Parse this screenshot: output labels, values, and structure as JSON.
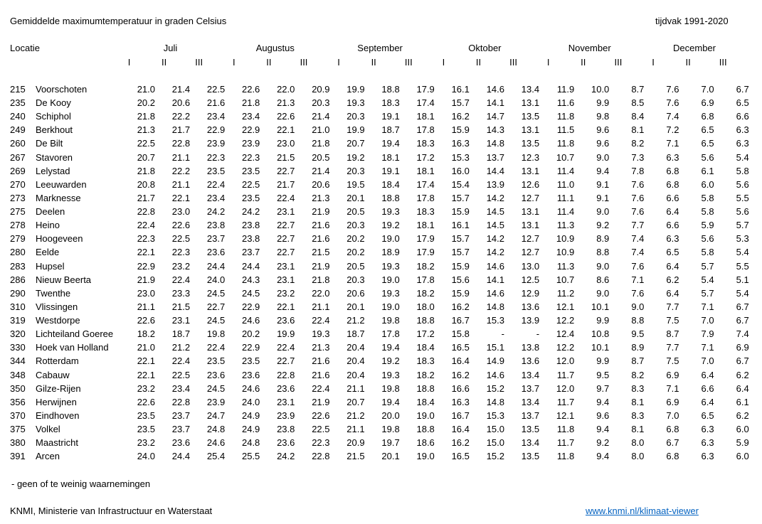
{
  "header": {
    "title": "Gemiddelde maximumtemperatuur in graden Celsius",
    "period": "tijdvak 1991-2020"
  },
  "table": {
    "location_header": "Locatie",
    "months": [
      "Juli",
      "Augustus",
      "September",
      "Oktober",
      "November",
      "December"
    ],
    "decades": [
      "I",
      "II",
      "III"
    ],
    "rows": [
      [
        "215",
        "Voorschoten",
        "21.0",
        "21.4",
        "22.5",
        "22.6",
        "22.0",
        "20.9",
        "19.9",
        "18.8",
        "17.9",
        "16.1",
        "14.6",
        "13.4",
        "11.9",
        "10.0",
        "8.7",
        "7.6",
        "7.0",
        "6.7"
      ],
      [
        "235",
        "De Kooy",
        "20.2",
        "20.6",
        "21.6",
        "21.8",
        "21.3",
        "20.3",
        "19.3",
        "18.3",
        "17.4",
        "15.7",
        "14.1",
        "13.1",
        "11.6",
        "9.9",
        "8.5",
        "7.6",
        "6.9",
        "6.5"
      ],
      [
        "240",
        "Schiphol",
        "21.8",
        "22.2",
        "23.4",
        "23.4",
        "22.6",
        "21.4",
        "20.3",
        "19.1",
        "18.1",
        "16.2",
        "14.7",
        "13.5",
        "11.8",
        "9.8",
        "8.4",
        "7.4",
        "6.8",
        "6.6"
      ],
      [
        "249",
        "Berkhout",
        "21.3",
        "21.7",
        "22.9",
        "22.9",
        "22.1",
        "21.0",
        "19.9",
        "18.7",
        "17.8",
        "15.9",
        "14.3",
        "13.1",
        "11.5",
        "9.6",
        "8.1",
        "7.2",
        "6.5",
        "6.3"
      ],
      [
        "260",
        "De Bilt",
        "22.5",
        "22.8",
        "23.9",
        "23.9",
        "23.0",
        "21.8",
        "20.7",
        "19.4",
        "18.3",
        "16.3",
        "14.8",
        "13.5",
        "11.8",
        "9.6",
        "8.2",
        "7.1",
        "6.5",
        "6.3"
      ],
      [
        "267",
        "Stavoren",
        "20.7",
        "21.1",
        "22.3",
        "22.3",
        "21.5",
        "20.5",
        "19.2",
        "18.1",
        "17.2",
        "15.3",
        "13.7",
        "12.3",
        "10.7",
        "9.0",
        "7.3",
        "6.3",
        "5.6",
        "5.4"
      ],
      [
        "269",
        "Lelystad",
        "21.8",
        "22.2",
        "23.5",
        "23.5",
        "22.7",
        "21.4",
        "20.3",
        "19.1",
        "18.1",
        "16.0",
        "14.4",
        "13.1",
        "11.4",
        "9.4",
        "7.8",
        "6.8",
        "6.1",
        "5.8"
      ],
      [
        "270",
        "Leeuwarden",
        "20.8",
        "21.1",
        "22.4",
        "22.5",
        "21.7",
        "20.6",
        "19.5",
        "18.4",
        "17.4",
        "15.4",
        "13.9",
        "12.6",
        "11.0",
        "9.1",
        "7.6",
        "6.8",
        "6.0",
        "5.6"
      ],
      [
        "273",
        "Marknesse",
        "21.7",
        "22.1",
        "23.4",
        "23.5",
        "22.4",
        "21.3",
        "20.1",
        "18.8",
        "17.8",
        "15.7",
        "14.2",
        "12.7",
        "11.1",
        "9.1",
        "7.6",
        "6.6",
        "5.8",
        "5.5"
      ],
      [
        "275",
        "Deelen",
        "22.8",
        "23.0",
        "24.2",
        "24.2",
        "23.1",
        "21.9",
        "20.5",
        "19.3",
        "18.3",
        "15.9",
        "14.5",
        "13.1",
        "11.4",
        "9.0",
        "7.6",
        "6.4",
        "5.8",
        "5.6"
      ],
      [
        "278",
        "Heino",
        "22.4",
        "22.6",
        "23.8",
        "23.8",
        "22.7",
        "21.6",
        "20.3",
        "19.2",
        "18.1",
        "16.1",
        "14.5",
        "13.1",
        "11.3",
        "9.2",
        "7.7",
        "6.6",
        "5.9",
        "5.7"
      ],
      [
        "279",
        "Hoogeveen",
        "22.3",
        "22.5",
        "23.7",
        "23.8",
        "22.7",
        "21.6",
        "20.2",
        "19.0",
        "17.9",
        "15.7",
        "14.2",
        "12.7",
        "10.9",
        "8.9",
        "7.4",
        "6.3",
        "5.6",
        "5.3"
      ],
      [
        "280",
        "Eelde",
        "22.1",
        "22.3",
        "23.6",
        "23.7",
        "22.7",
        "21.5",
        "20.2",
        "18.9",
        "17.9",
        "15.7",
        "14.2",
        "12.7",
        "10.9",
        "8.8",
        "7.4",
        "6.5",
        "5.8",
        "5.4"
      ],
      [
        "283",
        "Hupsel",
        "22.9",
        "23.2",
        "24.4",
        "24.4",
        "23.1",
        "21.9",
        "20.5",
        "19.3",
        "18.2",
        "15.9",
        "14.6",
        "13.0",
        "11.3",
        "9.0",
        "7.6",
        "6.4",
        "5.7",
        "5.5"
      ],
      [
        "286",
        "Nieuw Beerta",
        "21.9",
        "22.4",
        "24.0",
        "24.3",
        "23.1",
        "21.8",
        "20.3",
        "19.0",
        "17.8",
        "15.6",
        "14.1",
        "12.5",
        "10.7",
        "8.6",
        "7.1",
        "6.2",
        "5.4",
        "5.1"
      ],
      [
        "290",
        "Twenthe",
        "23.0",
        "23.3",
        "24.5",
        "24.5",
        "23.2",
        "22.0",
        "20.6",
        "19.3",
        "18.2",
        "15.9",
        "14.6",
        "12.9",
        "11.2",
        "9.0",
        "7.6",
        "6.4",
        "5.7",
        "5.4"
      ],
      [
        "310",
        "Vlissingen",
        "21.1",
        "21.5",
        "22.7",
        "22.9",
        "22.1",
        "21.1",
        "20.1",
        "19.0",
        "18.0",
        "16.2",
        "14.8",
        "13.6",
        "12.1",
        "10.1",
        "9.0",
        "7.7",
        "7.1",
        "6.7"
      ],
      [
        "319",
        "Westdorpe",
        "22.6",
        "23.1",
        "24.5",
        "24.6",
        "23.6",
        "22.4",
        "21.2",
        "19.8",
        "18.8",
        "16.7",
        "15.3",
        "13.9",
        "12.2",
        "9.9",
        "8.8",
        "7.5",
        "7.0",
        "6.7"
      ],
      [
        "320",
        "Lichteiland Goeree",
        "18.2",
        "18.7",
        "19.8",
        "20.2",
        "19.9",
        "19.3",
        "18.7",
        "17.8",
        "17.2",
        "15.8",
        "-",
        "-",
        "12.4",
        "10.8",
        "9.5",
        "8.7",
        "7.9",
        "7.4"
      ],
      [
        "330",
        "Hoek van Holland",
        "21.0",
        "21.2",
        "22.4",
        "22.9",
        "22.4",
        "21.3",
        "20.4",
        "19.4",
        "18.4",
        "16.5",
        "15.1",
        "13.8",
        "12.2",
        "10.1",
        "8.9",
        "7.7",
        "7.1",
        "6.9"
      ],
      [
        "344",
        "Rotterdam",
        "22.1",
        "22.4",
        "23.5",
        "23.5",
        "22.7",
        "21.6",
        "20.4",
        "19.2",
        "18.3",
        "16.4",
        "14.9",
        "13.6",
        "12.0",
        "9.9",
        "8.7",
        "7.5",
        "7.0",
        "6.7"
      ],
      [
        "348",
        "Cabauw",
        "22.1",
        "22.5",
        "23.6",
        "23.6",
        "22.8",
        "21.6",
        "20.4",
        "19.3",
        "18.2",
        "16.2",
        "14.6",
        "13.4",
        "11.7",
        "9.5",
        "8.2",
        "6.9",
        "6.4",
        "6.2"
      ],
      [
        "350",
        "Gilze-Rijen",
        "23.2",
        "23.4",
        "24.5",
        "24.6",
        "23.6",
        "22.4",
        "21.1",
        "19.8",
        "18.8",
        "16.6",
        "15.2",
        "13.7",
        "12.0",
        "9.7",
        "8.3",
        "7.1",
        "6.6",
        "6.4"
      ],
      [
        "356",
        "Herwijnen",
        "22.6",
        "22.8",
        "23.9",
        "24.0",
        "23.1",
        "21.9",
        "20.7",
        "19.4",
        "18.4",
        "16.3",
        "14.8",
        "13.4",
        "11.7",
        "9.4",
        "8.1",
        "6.9",
        "6.4",
        "6.1"
      ],
      [
        "370",
        "Eindhoven",
        "23.5",
        "23.7",
        "24.7",
        "24.9",
        "23.9",
        "22.6",
        "21.2",
        "20.0",
        "19.0",
        "16.7",
        "15.3",
        "13.7",
        "12.1",
        "9.6",
        "8.3",
        "7.0",
        "6.5",
        "6.2"
      ],
      [
        "375",
        "Volkel",
        "23.5",
        "23.7",
        "24.8",
        "24.9",
        "23.8",
        "22.5",
        "21.1",
        "19.8",
        "18.8",
        "16.4",
        "15.0",
        "13.5",
        "11.8",
        "9.4",
        "8.1",
        "6.8",
        "6.3",
        "6.0"
      ],
      [
        "380",
        "Maastricht",
        "23.2",
        "23.6",
        "24.6",
        "24.8",
        "23.6",
        "22.3",
        "20.9",
        "19.7",
        "18.6",
        "16.2",
        "15.0",
        "13.4",
        "11.7",
        "9.2",
        "8.0",
        "6.7",
        "6.3",
        "5.9"
      ],
      [
        "391",
        "Arcen",
        "24.0",
        "24.4",
        "25.4",
        "25.5",
        "24.2",
        "22.8",
        "21.5",
        "20.1",
        "19.0",
        "16.5",
        "15.2",
        "13.5",
        "11.8",
        "9.4",
        "8.0",
        "6.8",
        "6.3",
        "6.0"
      ]
    ]
  },
  "footnote": "- geen of te weinig waarnemingen",
  "footer": {
    "source": "KNMI, Ministerie van Infrastructuur en Waterstaat",
    "link": "www.knmi.nl/klimaat-viewer",
    "link_color": "#0563c1"
  }
}
